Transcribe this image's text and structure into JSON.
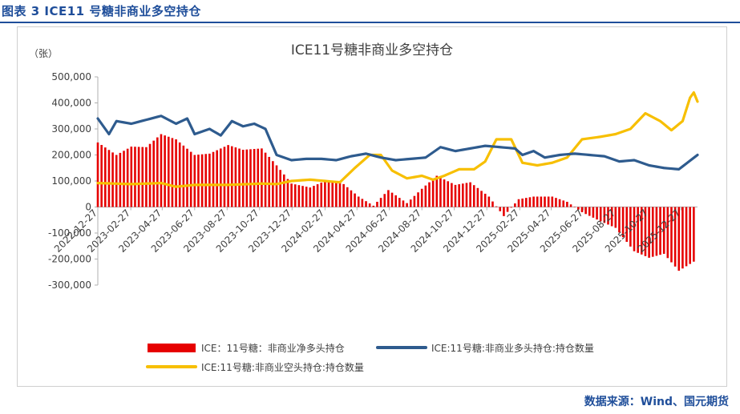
{
  "caption": "图表 3  ICE11 号糖非商业多空持仓",
  "source": "数据来源：Wind、国元期货",
  "colors": {
    "net": "#e60000",
    "long": "#2e5b8e",
    "short": "#f7bf00",
    "axis": "#b0b0b0",
    "text": "#404040",
    "caption": "#1f4e9a"
  },
  "chart_data": {
    "type": "bar",
    "title": "ICE11号糖非商业多空持仓",
    "unit": "（张）",
    "ylim": [
      -300000,
      500000
    ],
    "yticks": [
      -300000,
      -200000,
      -100000,
      0,
      100000,
      200000,
      300000,
      400000,
      500000
    ],
    "ytick_labels": [
      "-300,000",
      "-200,000",
      "-100,000",
      "0",
      "100,000",
      "200,000",
      "300,000",
      "400,000",
      "500,000"
    ],
    "x_range": [
      "2022-12-27",
      "2026-01-27"
    ],
    "xticks": [
      "2022-12-27",
      "2023-02-27",
      "2023-04-27",
      "2023-06-27",
      "2023-08-27",
      "2023-10-27",
      "2023-12-27",
      "2024-02-27",
      "2024-04-27",
      "2024-06-27",
      "2024-08-27",
      "2024-10-27",
      "2024-12-27",
      "2025-02-27",
      "2025-04-27",
      "2025-06-27",
      "2025-08-27",
      "2025-10-27",
      "2025-12-27"
    ],
    "legend": "bottom",
    "series": [
      {
        "name": "ICE：11号糖：非商业净多头持仓",
        "type": "bar",
        "points": [
          [
            "2022-12-27",
            248000
          ],
          [
            "2023-01-31",
            200000
          ],
          [
            "2023-02-28",
            232000
          ],
          [
            "2023-03-28",
            230000
          ],
          [
            "2023-04-25",
            280000
          ],
          [
            "2023-05-23",
            260000
          ],
          [
            "2023-06-27",
            200000
          ],
          [
            "2023-07-25",
            205000
          ],
          [
            "2023-08-29",
            238000
          ],
          [
            "2023-09-26",
            220000
          ],
          [
            "2023-10-31",
            225000
          ],
          [
            "2023-11-28",
            160000
          ],
          [
            "2023-12-26",
            90000
          ],
          [
            "2024-01-30",
            75000
          ],
          [
            "2024-02-27",
            100000
          ],
          [
            "2024-03-26",
            100000
          ],
          [
            "2024-04-30",
            40000
          ],
          [
            "2024-05-28",
            5000
          ],
          [
            "2024-06-25",
            65000
          ],
          [
            "2024-07-30",
            15000
          ],
          [
            "2024-08-27",
            70000
          ],
          [
            "2024-09-24",
            120000
          ],
          [
            "2024-10-29",
            85000
          ],
          [
            "2024-11-26",
            95000
          ],
          [
            "2024-12-31",
            40000
          ],
          [
            "2025-01-28",
            -35000
          ],
          [
            "2025-02-25",
            30000
          ],
          [
            "2025-03-25",
            40000
          ],
          [
            "2025-04-29",
            40000
          ],
          [
            "2025-05-27",
            20000
          ],
          [
            "2025-06-24",
            -20000
          ],
          [
            "2025-07-29",
            -55000
          ],
          [
            "2025-08-26",
            -80000
          ],
          [
            "2025-09-30",
            -170000
          ],
          [
            "2025-10-28",
            -195000
          ],
          [
            "2025-11-25",
            -180000
          ],
          [
            "2025-12-23",
            -245000
          ],
          [
            "2026-01-20",
            -210000
          ]
        ]
      },
      {
        "name": "ICE:11号糖:非商业多头持仓:持仓数量",
        "type": "line",
        "points": [
          [
            "2022-12-27",
            340000
          ],
          [
            "2023-01-17",
            280000
          ],
          [
            "2023-01-31",
            330000
          ],
          [
            "2023-02-28",
            320000
          ],
          [
            "2023-03-28",
            335000
          ],
          [
            "2023-04-25",
            350000
          ],
          [
            "2023-05-23",
            320000
          ],
          [
            "2023-06-13",
            340000
          ],
          [
            "2023-06-27",
            280000
          ],
          [
            "2023-07-25",
            300000
          ],
          [
            "2023-08-15",
            275000
          ],
          [
            "2023-09-05",
            330000
          ],
          [
            "2023-09-26",
            310000
          ],
          [
            "2023-10-17",
            320000
          ],
          [
            "2023-11-07",
            300000
          ],
          [
            "2023-11-28",
            200000
          ],
          [
            "2023-12-26",
            180000
          ],
          [
            "2024-01-23",
            185000
          ],
          [
            "2024-02-20",
            185000
          ],
          [
            "2024-03-19",
            180000
          ],
          [
            "2024-04-16",
            195000
          ],
          [
            "2024-05-14",
            205000
          ],
          [
            "2024-06-11",
            190000
          ],
          [
            "2024-07-09",
            180000
          ],
          [
            "2024-08-06",
            185000
          ],
          [
            "2024-09-03",
            190000
          ],
          [
            "2024-10-01",
            230000
          ],
          [
            "2024-10-29",
            215000
          ],
          [
            "2024-11-26",
            225000
          ],
          [
            "2024-12-24",
            235000
          ],
          [
            "2025-01-21",
            230000
          ],
          [
            "2025-02-18",
            225000
          ],
          [
            "2025-03-04",
            200000
          ],
          [
            "2025-03-25",
            215000
          ],
          [
            "2025-04-15",
            190000
          ],
          [
            "2025-05-13",
            200000
          ],
          [
            "2025-06-10",
            205000
          ],
          [
            "2025-07-08",
            200000
          ],
          [
            "2025-08-05",
            195000
          ],
          [
            "2025-09-02",
            175000
          ],
          [
            "2025-09-30",
            180000
          ],
          [
            "2025-10-28",
            160000
          ],
          [
            "2025-11-25",
            150000
          ],
          [
            "2025-12-23",
            145000
          ],
          [
            "2026-01-27",
            200000
          ]
        ]
      },
      {
        "name": "ICE:11号糖:非商业空头持仓:持仓数量",
        "type": "line",
        "points": [
          [
            "2022-12-27",
            92000
          ],
          [
            "2023-02-28",
            88000
          ],
          [
            "2023-04-25",
            92000
          ],
          [
            "2023-05-23",
            78000
          ],
          [
            "2023-06-27",
            85000
          ],
          [
            "2023-08-29",
            85000
          ],
          [
            "2023-10-31",
            90000
          ],
          [
            "2023-11-28",
            88000
          ],
          [
            "2023-12-26",
            100000
          ],
          [
            "2024-01-30",
            105000
          ],
          [
            "2024-02-27",
            100000
          ],
          [
            "2024-03-26",
            95000
          ],
          [
            "2024-04-23",
            150000
          ],
          [
            "2024-05-21",
            200000
          ],
          [
            "2024-06-11",
            200000
          ],
          [
            "2024-07-02",
            140000
          ],
          [
            "2024-07-30",
            110000
          ],
          [
            "2024-08-27",
            120000
          ],
          [
            "2024-09-17",
            105000
          ],
          [
            "2024-10-08",
            120000
          ],
          [
            "2024-11-05",
            145000
          ],
          [
            "2024-12-03",
            145000
          ],
          [
            "2024-12-24",
            175000
          ],
          [
            "2025-01-14",
            260000
          ],
          [
            "2025-02-11",
            260000
          ],
          [
            "2025-03-04",
            170000
          ],
          [
            "2025-04-01",
            160000
          ],
          [
            "2025-04-29",
            170000
          ],
          [
            "2025-05-27",
            190000
          ],
          [
            "2025-06-24",
            260000
          ],
          [
            "2025-07-29",
            270000
          ],
          [
            "2025-08-26",
            280000
          ],
          [
            "2025-09-23",
            300000
          ],
          [
            "2025-10-21",
            360000
          ],
          [
            "2025-11-18",
            330000
          ],
          [
            "2025-12-09",
            295000
          ],
          [
            "2025-12-30",
            330000
          ],
          [
            "2026-01-13",
            420000
          ],
          [
            "2026-01-20",
            440000
          ],
          [
            "2026-01-27",
            405000
          ]
        ]
      }
    ]
  }
}
